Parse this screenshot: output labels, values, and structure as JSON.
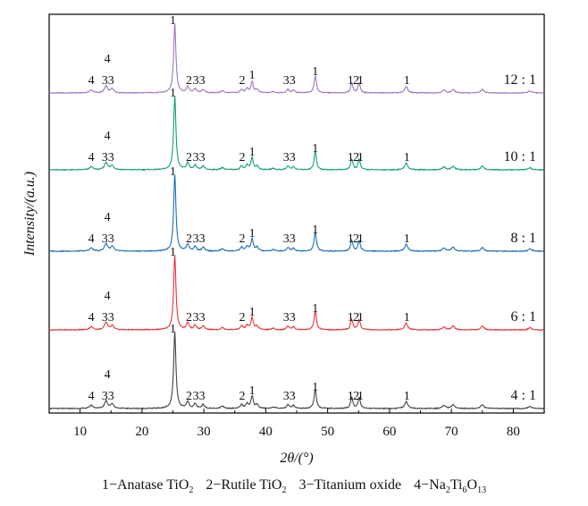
{
  "chart_data": {
    "type": "line",
    "xlabel": "2θ/(°)",
    "ylabel": "Intensity/(a.u.)",
    "xlim": [
      5,
      85
    ],
    "x_ticks": [
      10,
      20,
      30,
      40,
      50,
      60,
      70,
      80
    ],
    "y_ticks": [],
    "grid": false,
    "legend": "none",
    "series": [
      {
        "name": "12 : 1",
        "color": "#9b78c0"
      },
      {
        "name": "10 : 1",
        "color": "#14a06b"
      },
      {
        "name": "8 : 1",
        "color": "#1d6fb8"
      },
      {
        "name": "6 : 1",
        "color": "#e8333c"
      },
      {
        "name": "4 : 1",
        "color": "#444444"
      }
    ],
    "peaks": [
      {
        "x": 11.8,
        "h": 0.04,
        "w": 0.35
      },
      {
        "x": 14.2,
        "h": 0.1,
        "w": 0.3
      },
      {
        "x": 15.2,
        "h": 0.06,
        "w": 0.3
      },
      {
        "x": 25.3,
        "h": 1.0,
        "w": 0.22
      },
      {
        "x": 27.4,
        "h": 0.09,
        "w": 0.25
      },
      {
        "x": 28.6,
        "h": 0.06,
        "w": 0.25
      },
      {
        "x": 29.9,
        "h": 0.05,
        "w": 0.25
      },
      {
        "x": 33.0,
        "h": 0.03,
        "w": 0.3
      },
      {
        "x": 36.1,
        "h": 0.05,
        "w": 0.25
      },
      {
        "x": 37.0,
        "h": 0.06,
        "w": 0.25
      },
      {
        "x": 37.8,
        "h": 0.16,
        "w": 0.22
      },
      {
        "x": 38.6,
        "h": 0.05,
        "w": 0.25
      },
      {
        "x": 41.2,
        "h": 0.02,
        "w": 0.3
      },
      {
        "x": 43.6,
        "h": 0.05,
        "w": 0.25
      },
      {
        "x": 44.5,
        "h": 0.04,
        "w": 0.25
      },
      {
        "x": 48.0,
        "h": 0.25,
        "w": 0.22
      },
      {
        "x": 53.9,
        "h": 0.14,
        "w": 0.22
      },
      {
        "x": 55.1,
        "h": 0.14,
        "w": 0.22
      },
      {
        "x": 62.7,
        "h": 0.09,
        "w": 0.3
      },
      {
        "x": 68.8,
        "h": 0.04,
        "w": 0.3
      },
      {
        "x": 70.3,
        "h": 0.05,
        "w": 0.3
      },
      {
        "x": 75.0,
        "h": 0.05,
        "w": 0.3
      },
      {
        "x": 82.7,
        "h": 0.03,
        "w": 0.3
      }
    ],
    "peak_labels": [
      {
        "x": 11.8,
        "text": "4"
      },
      {
        "x": 14.4,
        "text": "4"
      },
      {
        "x": 14.5,
        "text": "33"
      },
      {
        "x": 25.0,
        "text": "1"
      },
      {
        "x": 27.6,
        "text": "2"
      },
      {
        "x": 29.2,
        "text": "33"
      },
      {
        "x": 36.2,
        "text": "2"
      },
      {
        "x": 37.8,
        "text": "1"
      },
      {
        "x": 43.8,
        "text": "33"
      },
      {
        "x": 48.0,
        "text": "1"
      },
      {
        "x": 53.7,
        "text": "1"
      },
      {
        "x": 54.6,
        "text": "2"
      },
      {
        "x": 55.3,
        "text": "1"
      },
      {
        "x": 62.8,
        "text": "1"
      }
    ]
  },
  "legend_note": [
    {
      "prefix": "1−Anatase TiO",
      "sub": "2",
      "suffix": ""
    },
    {
      "prefix": "2−Rutile TiO",
      "sub": "2",
      "suffix": ""
    },
    {
      "prefix": "3−Titanium oxide",
      "sub": "",
      "suffix": ""
    },
    {
      "prefix": "4−Na",
      "sub": "2",
      "suffix": "Ti",
      "sub2": "6",
      "suffix2": "O",
      "sub3": "13"
    }
  ]
}
